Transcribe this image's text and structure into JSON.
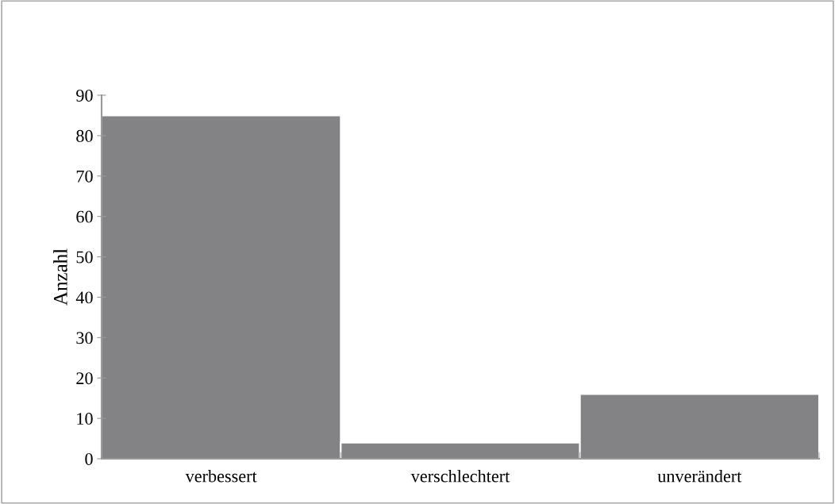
{
  "chart_data": {
    "type": "bar",
    "ylabel": "Anzahl",
    "categories": [
      "verbessert",
      "verschlechtert",
      "unverändert"
    ],
    "values": [
      85,
      4,
      16
    ],
    "color": "#838385",
    "ylim": [
      0,
      90
    ],
    "yticks": [
      0,
      10,
      20,
      30,
      40,
      50,
      60,
      70,
      80,
      90
    ],
    "grid": false,
    "legend": false
  }
}
